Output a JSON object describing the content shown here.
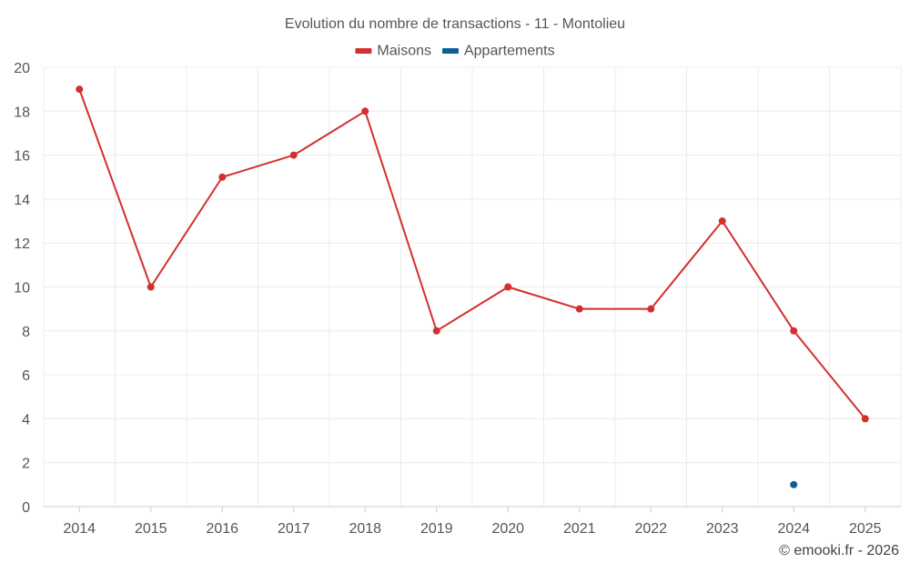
{
  "chart_data": {
    "type": "line",
    "title": "Evolution du nombre de transactions - 11 - Montolieu",
    "categories": [
      "2014",
      "2015",
      "2016",
      "2017",
      "2018",
      "2019",
      "2020",
      "2021",
      "2022",
      "2023",
      "2024",
      "2025"
    ],
    "series": [
      {
        "name": "Maisons",
        "color": "#d32f2f",
        "values": [
          19,
          10,
          15,
          16,
          18,
          8,
          10,
          9,
          9,
          13,
          8,
          4
        ]
      },
      {
        "name": "Appartements",
        "color": "#0b5f95",
        "values": [
          null,
          null,
          null,
          null,
          null,
          null,
          null,
          null,
          null,
          null,
          1,
          null
        ]
      }
    ],
    "ylim": [
      0,
      20
    ],
    "yticks": [
      0,
      2,
      4,
      6,
      8,
      10,
      12,
      14,
      16,
      18,
      20
    ],
    "xlabel": "",
    "ylabel": "",
    "grid": true,
    "legend_position": "top-center"
  },
  "credit": "© emooki.fr - 2026"
}
